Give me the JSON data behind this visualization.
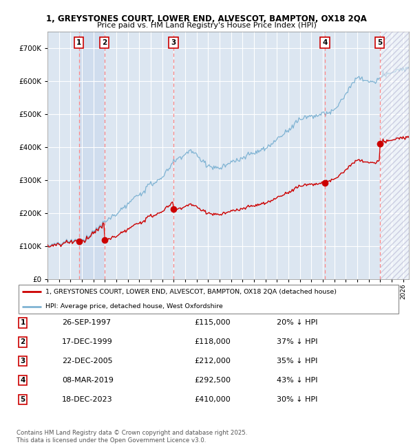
{
  "title1": "1, GREYSTONES COURT, LOWER END, ALVESCOT, BAMPTON, OX18 2QA",
  "title2": "Price paid vs. HM Land Registry's House Price Index (HPI)",
  "ylim": [
    0,
    750000
  ],
  "yticks": [
    0,
    100000,
    200000,
    300000,
    400000,
    500000,
    600000,
    700000
  ],
  "xlim_start": 1995.0,
  "xlim_end": 2026.5,
  "plot_bg_color": "#dce6f1",
  "hpi_color": "#7fb3d3",
  "price_color": "#cc0000",
  "vline_color": "#ff8888",
  "sale_dates_x": [
    1997.74,
    1999.96,
    2005.98,
    2019.18,
    2023.96
  ],
  "sale_prices_y": [
    115000,
    118000,
    212000,
    292500,
    410000
  ],
  "sale_labels": [
    "1",
    "2",
    "3",
    "4",
    "5"
  ],
  "sale_info": [
    {
      "num": "1",
      "date": "26-SEP-1997",
      "price": "£115,000",
      "hpi": "20% ↓ HPI"
    },
    {
      "num": "2",
      "date": "17-DEC-1999",
      "price": "£118,000",
      "hpi": "37% ↓ HPI"
    },
    {
      "num": "3",
      "date": "22-DEC-2005",
      "price": "£212,000",
      "hpi": "35% ↓ HPI"
    },
    {
      "num": "4",
      "date": "08-MAR-2019",
      "price": "£292,500",
      "hpi": "43% ↓ HPI"
    },
    {
      "num": "5",
      "date": "18-DEC-2023",
      "price": "£410,000",
      "hpi": "30% ↓ HPI"
    }
  ],
  "legend_label1": "1, GREYSTONES COURT, LOWER END, ALVESCOT, BAMPTON, OX18 2QA (detached house)",
  "legend_label2": "HPI: Average price, detached house, West Oxfordshire",
  "footer": "Contains HM Land Registry data © Crown copyright and database right 2025.\nThis data is licensed under the Open Government Licence v3.0.",
  "grid_color": "#ffffff",
  "highlight_col_color": "#c8d8ec"
}
